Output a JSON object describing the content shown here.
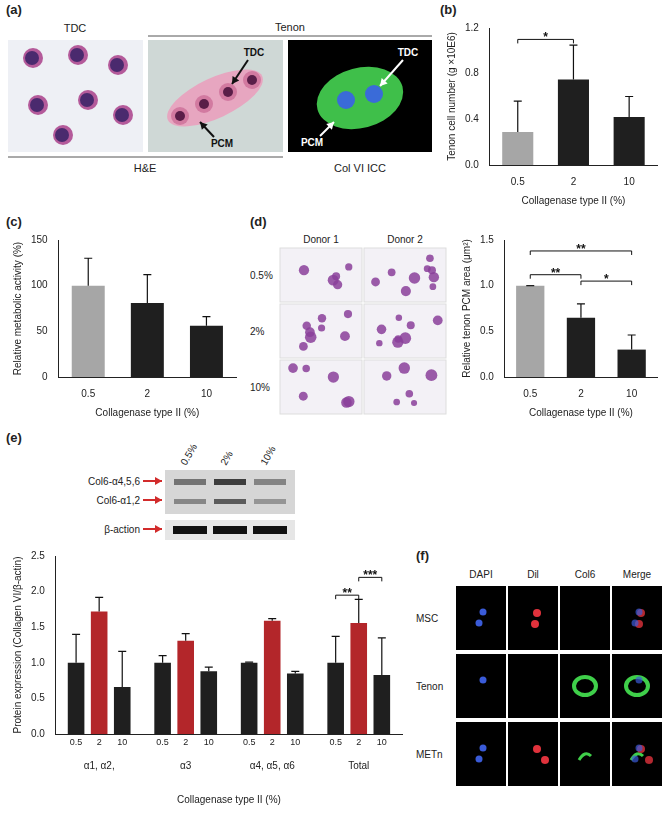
{
  "figure": {
    "a": {
      "panel": "(a)",
      "group_labels": [
        "TDC",
        "Tenon"
      ],
      "image_labels": [
        "H&E",
        "Col VI ICC"
      ],
      "arrow_labels": [
        "TDC",
        "PCM"
      ]
    },
    "d_images": {
      "panel": "(d)",
      "columns": [
        "Donor 1",
        "Donor 2"
      ],
      "rows": [
        "0.5%",
        "2%",
        "10%"
      ]
    },
    "e_blot": {
      "lanes": [
        "0.5%",
        "2%",
        "10%"
      ],
      "bands": [
        "Col6-α4,5,6",
        "Col6-α1,2",
        "β-action"
      ]
    },
    "f": {
      "panel": "(f)",
      "columns": [
        "DAPI",
        "Dil",
        "Col6",
        "Merge"
      ],
      "rows": [
        "MSC",
        "Tenon",
        "METn"
      ]
    }
  },
  "chart_data": [
    {
      "panel": "(b)",
      "type": "bar",
      "y_label": "Tenon cell number (g ×10E6)",
      "x_label": "Collagenase type II (%)",
      "categories": [
        "0.5",
        "2",
        "10"
      ],
      "values": [
        0.29,
        0.75,
        0.42
      ],
      "errors": [
        0.27,
        0.3,
        0.18
      ],
      "colors": [
        "#a6a6a6",
        "#1f1f1f",
        "#1f1f1f"
      ],
      "ylim": [
        0,
        1.2
      ],
      "yticks": [
        {
          "value": 0,
          "label": "0.0"
        },
        0.4,
        0.8,
        1.2
      ],
      "grid": false,
      "annotations": [
        {
          "from": "0.5",
          "to": "2",
          "y": 1.1,
          "text": "*"
        }
      ]
    },
    {
      "panel": "(c)",
      "type": "bar",
      "y_label": "Relative metabolic activity (%)",
      "x_label": "Collagenase type II (%)",
      "categories": [
        "0.5",
        "2",
        "10"
      ],
      "values": [
        100,
        81,
        56
      ],
      "errors": [
        30,
        31,
        10
      ],
      "colors": [
        "#a6a6a6",
        "#1f1f1f",
        "#1f1f1f"
      ],
      "ylim": [
        0,
        150
      ],
      "yticks": [
        0,
        50,
        100,
        150
      ],
      "grid": false
    },
    {
      "type": "bar",
      "y_label": "Relative tenon PCM area (μm²)",
      "x_label": "Collagenase type II (%)",
      "categories": [
        "0.5",
        "2",
        "10"
      ],
      "values": [
        1.0,
        0.65,
        0.3
      ],
      "errors": [
        0,
        0.15,
        0.16
      ],
      "colors": [
        "#a6a6a6",
        "#1f1f1f",
        "#1f1f1f"
      ],
      "ylim": [
        0,
        1.5
      ],
      "yticks": [
        {
          "value": 0,
          "label": "0.0"
        },
        0.5,
        {
          "value": 1,
          "label": "1.0"
        },
        1.5
      ],
      "grid": false,
      "annotations": [
        {
          "from": "0.5",
          "to": "10",
          "y": 1.38,
          "text": "**"
        },
        {
          "from": "0.5",
          "to": "2",
          "y": 1.12,
          "text": "**"
        },
        {
          "from": "2",
          "to": "10",
          "y": 1.05,
          "text": "*"
        }
      ]
    },
    {
      "panel": "(e)",
      "type": "bar",
      "y_label": "Protein expression (Collagen VI/β-actin)",
      "x_label": "Collagenase type II (%)",
      "categories": [
        "α1, α2,",
        "α3",
        "α4, α5, α6",
        "Total"
      ],
      "series": [
        {
          "name": "0.5",
          "color": "#1f1f1f",
          "values": [
            1.0,
            1.0,
            1.0,
            1.0
          ],
          "errors": [
            0.4,
            0.1,
            0.01,
            0.37
          ]
        },
        {
          "name": "2",
          "color": "#b3262a",
          "values": [
            1.72,
            1.31,
            1.59,
            1.56
          ],
          "errors": [
            0.2,
            0.1,
            0.03,
            0.33
          ]
        },
        {
          "name": "10",
          "color": "#1f1f1f",
          "values": [
            0.66,
            0.88,
            0.85,
            0.83
          ],
          "errors": [
            0.5,
            0.06,
            0.03,
            0.52
          ]
        }
      ],
      "ylim": [
        0,
        2.5
      ],
      "yticks": [
        {
          "value": 0,
          "label": "0.0"
        },
        0.5,
        {
          "value": 1,
          "label": "1.0"
        },
        1.5,
        {
          "value": 2,
          "label": "2.0"
        },
        2.5
      ],
      "grid": false,
      "annotations": [
        {
          "category": "Total",
          "from": "0.5",
          "to": "2",
          "y": 1.95,
          "text": "**"
        },
        {
          "category": "Total",
          "from": "2",
          "to": "10",
          "y": 2.2,
          "text": "***"
        }
      ]
    }
  ]
}
